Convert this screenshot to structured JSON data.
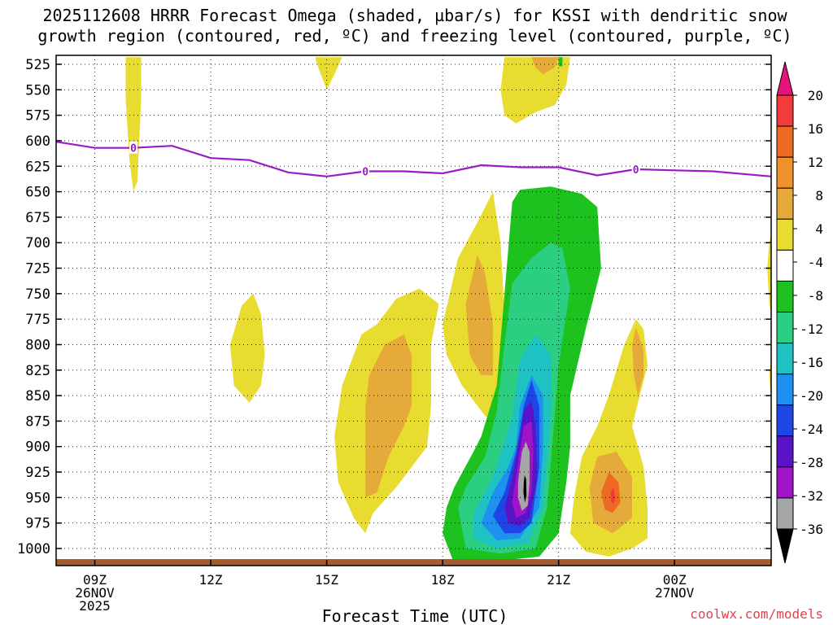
{
  "chart_data": {
    "type": "heatmap",
    "title_lines": [
      "2025112608 HRRR Forecast Omega (shaded, µbar/s) for KSSI with dendritic snow",
      "growth region (contoured, red, ºC) and freezing level (contoured, purple, ºC)"
    ],
    "xlabel": "Forecast Time (UTC)",
    "x_range_hours": [
      8,
      26.5
    ],
    "x_ticks": [
      {
        "hour": 9,
        "lines": [
          "09Z",
          "26NOV",
          "2025"
        ]
      },
      {
        "hour": 12,
        "lines": [
          "12Z"
        ]
      },
      {
        "hour": 15,
        "lines": [
          "15Z"
        ]
      },
      {
        "hour": 18,
        "lines": [
          "18Z"
        ]
      },
      {
        "hour": 21,
        "lines": [
          "21Z"
        ]
      },
      {
        "hour": 24,
        "lines": [
          "00Z",
          "27NOV"
        ]
      }
    ],
    "y_ticks": [
      525,
      550,
      575,
      600,
      625,
      650,
      675,
      700,
      725,
      750,
      775,
      800,
      825,
      850,
      875,
      900,
      925,
      950,
      975,
      1000
    ],
    "y_range_hpa": [
      518,
      1015
    ],
    "colorbar": {
      "labels": [
        "20",
        "16",
        "12",
        "8",
        "4",
        "-4",
        "-8",
        "-12",
        "-16",
        "-20",
        "-24",
        "-28",
        "-32",
        "-36"
      ],
      "colors": [
        "#e8127c",
        "#f23c3c",
        "#ee6a24",
        "#f0922c",
        "#e6aa3a",
        "#e8dc30",
        "#ffffff",
        "#1ec21e",
        "#2ccf82",
        "#1fc2c2",
        "#1e90f0",
        "#1e46e6",
        "#5a14c8",
        "#a014c8",
        "#a6a6a6",
        "#000000"
      ]
    },
    "freezing_level": {
      "label": "0",
      "points": [
        [
          8.0,
          601
        ],
        [
          9.0,
          607
        ],
        [
          10.0,
          607
        ],
        [
          11.0,
          605
        ],
        [
          12.0,
          617
        ],
        [
          13.0,
          619
        ],
        [
          14.0,
          631
        ],
        [
          15.0,
          635
        ],
        [
          16.0,
          630
        ],
        [
          17.0,
          630
        ],
        [
          18.0,
          632
        ],
        [
          19.0,
          624
        ],
        [
          20.0,
          626
        ],
        [
          21.0,
          626
        ],
        [
          22.0,
          634
        ],
        [
          23.0,
          628
        ],
        [
          24.0,
          629
        ],
        [
          25.0,
          630
        ],
        [
          26.5,
          635
        ]
      ],
      "label_hours": [
        10.0,
        16.0,
        23.0
      ]
    },
    "omega_regions": [
      {
        "value": 4,
        "color": "#e8dc30",
        "points": [
          [
            9.8,
            518
          ],
          [
            10.2,
            518
          ],
          [
            10.2,
            560
          ],
          [
            10.1,
            640
          ],
          [
            10.0,
            650
          ],
          [
            9.9,
            620
          ],
          [
            9.8,
            560
          ]
        ]
      },
      {
        "value": 4,
        "color": "#e8dc30",
        "points": [
          [
            14.7,
            518
          ],
          [
            15.4,
            518
          ],
          [
            15.2,
            535
          ],
          [
            15.0,
            550
          ],
          [
            14.8,
            530
          ]
        ]
      },
      {
        "value": 4,
        "color": "#e8dc30",
        "points": [
          [
            19.6,
            518
          ],
          [
            21.3,
            518
          ],
          [
            21.2,
            545
          ],
          [
            20.9,
            565
          ],
          [
            20.4,
            572
          ],
          [
            19.9,
            583
          ],
          [
            19.6,
            575
          ],
          [
            19.5,
            550
          ]
        ]
      },
      {
        "value": 8,
        "color": "#e6aa3a",
        "points": [
          [
            20.3,
            518
          ],
          [
            21.0,
            518
          ],
          [
            20.9,
            528
          ],
          [
            20.6,
            535
          ],
          [
            20.4,
            528
          ]
        ]
      },
      {
        "value": -4,
        "color": "#1ec21e",
        "points": [
          [
            21.0,
            518
          ],
          [
            21.1,
            518
          ],
          [
            21.1,
            527
          ],
          [
            21.0,
            527
          ]
        ]
      },
      {
        "value": 4,
        "color": "#e8dc30",
        "points": [
          [
            12.5,
            800
          ],
          [
            12.8,
            762
          ],
          [
            13.1,
            750
          ],
          [
            13.3,
            770
          ],
          [
            13.4,
            810
          ],
          [
            13.3,
            840
          ],
          [
            13.0,
            857
          ],
          [
            12.6,
            840
          ]
        ]
      },
      {
        "value": 4,
        "color": "#e8dc30",
        "points": [
          [
            15.3,
            935
          ],
          [
            15.2,
            890
          ],
          [
            15.4,
            840
          ],
          [
            15.9,
            790
          ],
          [
            16.3,
            780
          ],
          [
            16.8,
            755
          ],
          [
            17.4,
            745
          ],
          [
            17.9,
            760
          ],
          [
            17.7,
            800
          ],
          [
            17.7,
            860
          ],
          [
            17.6,
            900
          ],
          [
            17.2,
            920
          ],
          [
            16.8,
            940
          ],
          [
            16.2,
            965
          ],
          [
            16.0,
            985
          ],
          [
            15.7,
            970
          ]
        ]
      },
      {
        "value": 8,
        "color": "#e6aa3a",
        "points": [
          [
            16.0,
            862
          ],
          [
            16.1,
            830
          ],
          [
            16.5,
            800
          ],
          [
            17.0,
            790
          ],
          [
            17.2,
            810
          ],
          [
            17.2,
            860
          ],
          [
            17.0,
            880
          ],
          [
            16.6,
            910
          ],
          [
            16.3,
            945
          ],
          [
            16.0,
            950
          ]
        ]
      },
      {
        "value": 4,
        "color": "#e8dc30",
        "points": [
          [
            18.0,
            780
          ],
          [
            18.4,
            715
          ],
          [
            18.9,
            680
          ],
          [
            19.3,
            650
          ],
          [
            19.5,
            700
          ],
          [
            19.6,
            770
          ],
          [
            19.8,
            820
          ],
          [
            19.9,
            870
          ],
          [
            19.6,
            880
          ],
          [
            19.1,
            870
          ],
          [
            18.9,
            860
          ],
          [
            18.5,
            840
          ],
          [
            18.1,
            810
          ]
        ]
      },
      {
        "value": 8,
        "color": "#e6aa3a",
        "points": [
          [
            18.6,
            760
          ],
          [
            18.9,
            712
          ],
          [
            19.1,
            730
          ],
          [
            19.3,
            780
          ],
          [
            19.3,
            830
          ],
          [
            19.0,
            830
          ],
          [
            18.7,
            810
          ]
        ]
      },
      {
        "value": -4,
        "color": "#1ec21e",
        "points": [
          [
            19.8,
            660
          ],
          [
            20.0,
            648
          ],
          [
            20.8,
            645
          ],
          [
            21.6,
            652
          ],
          [
            22.0,
            665
          ],
          [
            22.1,
            725
          ],
          [
            21.7,
            785
          ],
          [
            21.3,
            850
          ],
          [
            21.3,
            900
          ],
          [
            21.2,
            935
          ],
          [
            21.0,
            985
          ],
          [
            20.5,
            1008
          ],
          [
            19.5,
            1012
          ],
          [
            18.3,
            1015
          ],
          [
            18.0,
            985
          ],
          [
            18.1,
            960
          ],
          [
            18.3,
            940
          ],
          [
            18.8,
            905
          ],
          [
            19.0,
            890
          ],
          [
            19.4,
            840
          ]
        ]
      },
      {
        "value": -8,
        "color": "#2ccf82",
        "points": [
          [
            19.6,
            800
          ],
          [
            19.8,
            740
          ],
          [
            20.3,
            715
          ],
          [
            20.8,
            700
          ],
          [
            21.1,
            705
          ],
          [
            21.3,
            745
          ],
          [
            21.0,
            820
          ],
          [
            20.9,
            870
          ],
          [
            20.7,
            960
          ],
          [
            20.4,
            1000
          ],
          [
            19.5,
            1005
          ],
          [
            18.6,
            1000
          ],
          [
            18.4,
            960
          ],
          [
            18.6,
            940
          ],
          [
            19.1,
            910
          ],
          [
            19.4,
            865
          ]
        ]
      },
      {
        "value": -12,
        "color": "#1fc2c2",
        "points": [
          [
            19.8,
            870
          ],
          [
            20.0,
            815
          ],
          [
            20.4,
            790
          ],
          [
            20.8,
            810
          ],
          [
            20.8,
            870
          ],
          [
            20.6,
            960
          ],
          [
            20.2,
            995
          ],
          [
            19.4,
            1000
          ],
          [
            18.8,
            990
          ],
          [
            18.8,
            965
          ],
          [
            19.3,
            930
          ],
          [
            19.6,
            895
          ]
        ]
      },
      {
        "value": -16,
        "color": "#1e90f0",
        "points": [
          [
            19.9,
            900
          ],
          [
            20.0,
            860
          ],
          [
            20.3,
            830
          ],
          [
            20.6,
            850
          ],
          [
            20.6,
            900
          ],
          [
            20.5,
            960
          ],
          [
            20.0,
            990
          ],
          [
            19.4,
            992
          ],
          [
            19.0,
            975
          ],
          [
            19.3,
            945
          ],
          [
            19.7,
            920
          ]
        ]
      },
      {
        "value": -20,
        "color": "#1e46e6",
        "points": [
          [
            19.9,
            905
          ],
          [
            20.1,
            860
          ],
          [
            20.3,
            835
          ],
          [
            20.5,
            860
          ],
          [
            20.5,
            920
          ],
          [
            20.3,
            975
          ],
          [
            20.0,
            985
          ],
          [
            19.6,
            985
          ],
          [
            19.3,
            968
          ],
          [
            19.6,
            945
          ]
        ]
      },
      {
        "value": -24,
        "color": "#5a14c8",
        "points": [
          [
            20.0,
            890
          ],
          [
            20.1,
            865
          ],
          [
            20.3,
            855
          ],
          [
            20.4,
            880
          ],
          [
            20.45,
            930
          ],
          [
            20.25,
            970
          ],
          [
            20.0,
            978
          ],
          [
            19.7,
            975
          ],
          [
            19.6,
            960
          ],
          [
            19.8,
            930
          ]
        ]
      },
      {
        "value": -28,
        "color": "#a014c8",
        "points": [
          [
            20.0,
            905
          ],
          [
            20.1,
            880
          ],
          [
            20.3,
            875
          ],
          [
            20.35,
            905
          ],
          [
            20.3,
            945
          ],
          [
            20.15,
            965
          ],
          [
            19.9,
            970
          ],
          [
            19.8,
            955
          ],
          [
            19.9,
            930
          ]
        ]
      },
      {
        "value": -32,
        "color": "#a6a6a6",
        "points": [
          [
            20.0,
            920
          ],
          [
            20.05,
            905
          ],
          [
            20.15,
            895
          ],
          [
            20.25,
            905
          ],
          [
            20.25,
            935
          ],
          [
            20.2,
            958
          ],
          [
            20.05,
            963
          ],
          [
            19.95,
            950
          ],
          [
            19.95,
            935
          ]
        ]
      },
      {
        "value": -36,
        "color": "#000000",
        "points": [
          [
            20.1,
            935
          ],
          [
            20.12,
            928
          ],
          [
            20.16,
            932
          ],
          [
            20.17,
            948
          ],
          [
            20.13,
            955
          ],
          [
            20.09,
            945
          ]
        ]
      },
      {
        "value": 4,
        "color": "#e8dc30",
        "points": [
          [
            21.4,
            950
          ],
          [
            21.6,
            910
          ],
          [
            22.0,
            880
          ],
          [
            22.3,
            850
          ],
          [
            22.7,
            800
          ],
          [
            23.0,
            775
          ],
          [
            23.2,
            785
          ],
          [
            23.3,
            820
          ],
          [
            23.1,
            850
          ],
          [
            22.9,
            880
          ],
          [
            23.2,
            920
          ],
          [
            23.3,
            960
          ],
          [
            23.3,
            990
          ],
          [
            22.9,
            1000
          ],
          [
            22.3,
            1008
          ],
          [
            21.7,
            1003
          ],
          [
            21.3,
            985
          ]
        ]
      },
      {
        "value": 8,
        "color": "#e6aa3a",
        "points": [
          [
            21.8,
            940
          ],
          [
            22.0,
            910
          ],
          [
            22.5,
            905
          ],
          [
            22.9,
            930
          ],
          [
            22.9,
            970
          ],
          [
            22.4,
            985
          ],
          [
            21.9,
            975
          ]
        ]
      },
      {
        "value": 8,
        "color": "#e6aa3a",
        "points": [
          [
            22.9,
            800
          ],
          [
            23.0,
            783
          ],
          [
            23.2,
            805
          ],
          [
            23.2,
            830
          ],
          [
            23.05,
            850
          ],
          [
            22.95,
            830
          ]
        ]
      },
      {
        "value": 12,
        "color": "#ee6a24",
        "points": [
          [
            22.1,
            945
          ],
          [
            22.3,
            925
          ],
          [
            22.55,
            935
          ],
          [
            22.6,
            955
          ],
          [
            22.4,
            965
          ],
          [
            22.2,
            962
          ]
        ]
      },
      {
        "value": 16,
        "color": "#f23c3c",
        "points": [
          [
            22.35,
            945
          ],
          [
            22.42,
            940
          ],
          [
            22.47,
            950
          ],
          [
            22.42,
            957
          ],
          [
            22.35,
            953
          ]
        ]
      },
      {
        "value": 4,
        "color": "#e8dc30",
        "points": [
          [
            26.5,
            690
          ],
          [
            26.45,
            700
          ],
          [
            26.4,
            725
          ],
          [
            26.45,
            760
          ],
          [
            26.5,
            770
          ]
        ]
      },
      {
        "value": 4,
        "color": "#e8dc30",
        "points": [
          [
            26.5,
            810
          ],
          [
            26.45,
            830
          ],
          [
            26.5,
            855
          ]
        ]
      }
    ],
    "ground": {
      "color": "#a75c2e"
    }
  },
  "credit": "coolwx.com/models"
}
